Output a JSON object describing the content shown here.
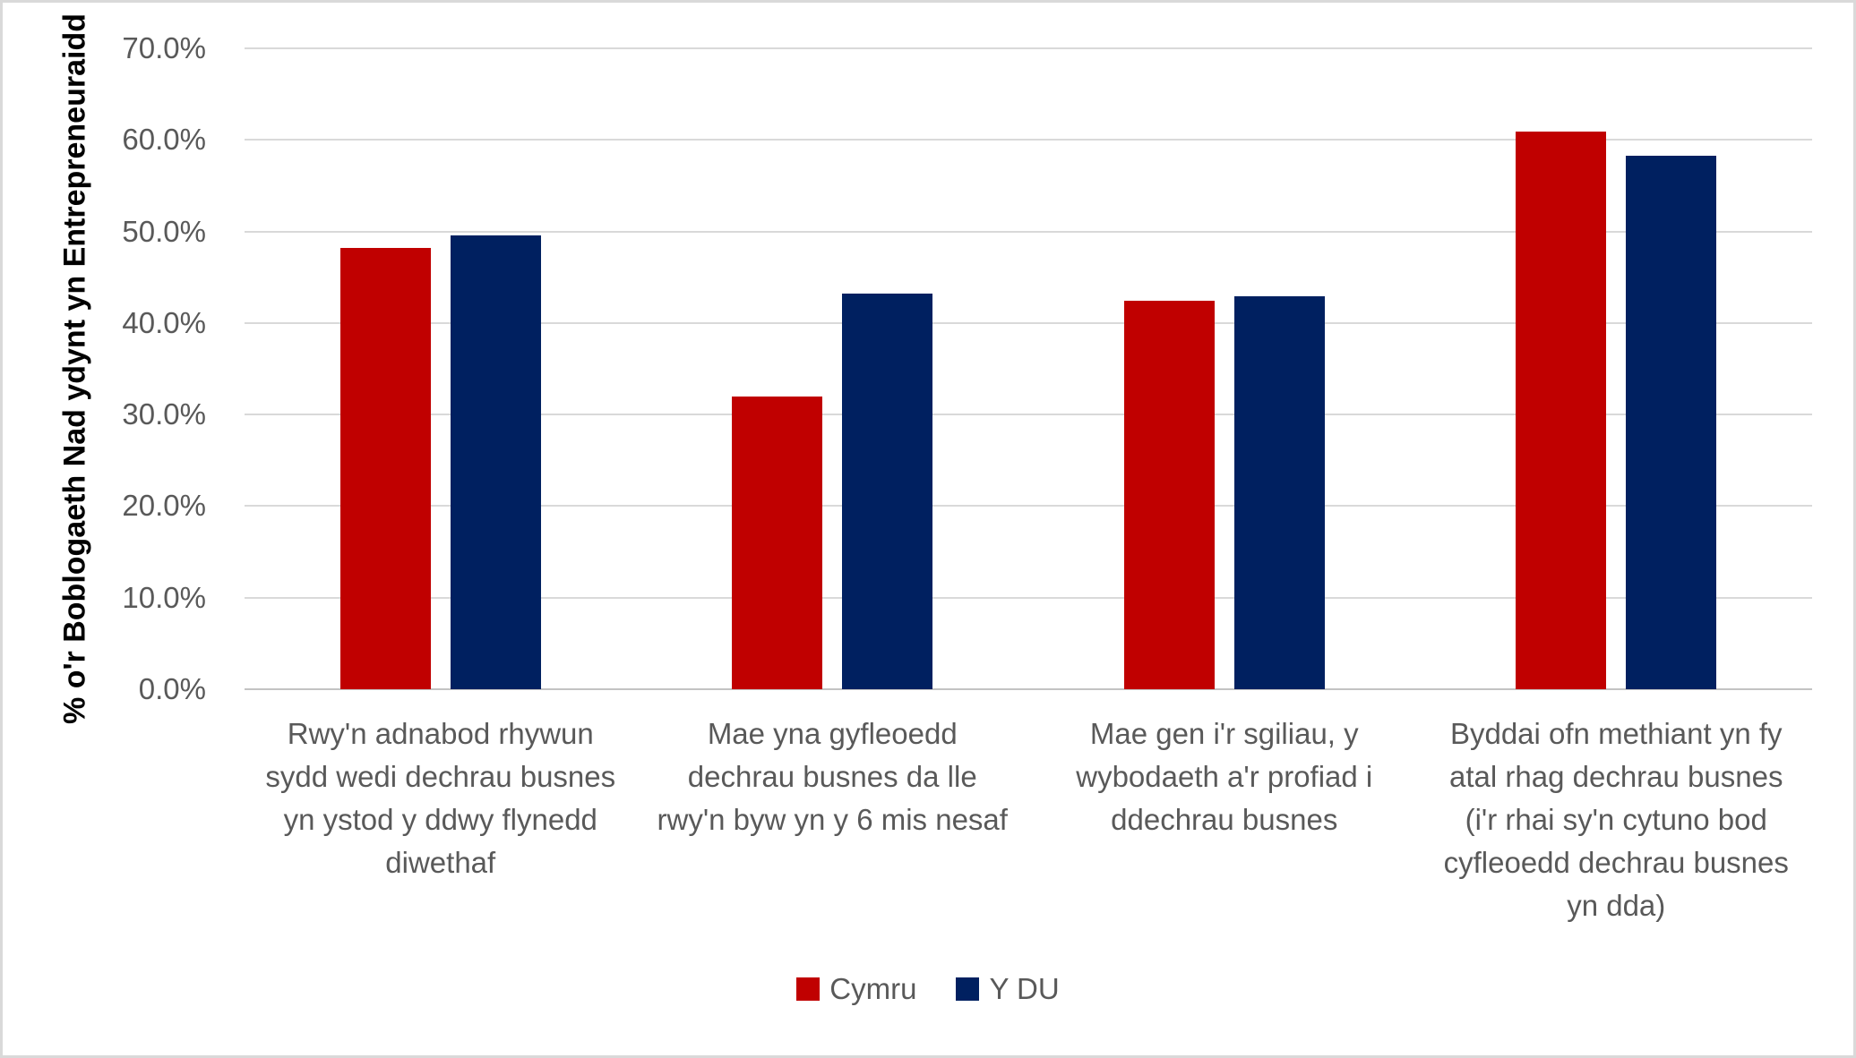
{
  "chart_data": {
    "type": "bar",
    "title": "",
    "xlabel": "",
    "ylabel": "% o'r Boblogaeth Nad ydynt yn Entrepreneuraidd",
    "categories": [
      "Rwy'n adnabod rhywun\nsydd wedi dechrau busnes\nyn ystod y ddwy flynedd\ndiwethaf",
      "Mae yna gyfleoedd\ndechrau busnes da lle\nrwy'n byw yn y 6 mis nesaf",
      "Mae gen i'r sgiliau, y\nwybodaeth a'r profiad i\nddechrau busnes",
      "Byddai ofn methiant yn fy\natal rhag dechrau busnes\n(i'r rhai sy'n cytuno bod\ncyfleoedd dechrau busnes\nyn dda)"
    ],
    "series": [
      {
        "name": "Cymru",
        "color": "#C00000",
        "values": [
          48.2,
          32.0,
          42.4,
          60.9
        ]
      },
      {
        "name": "Y DU",
        "color": "#002060",
        "values": [
          49.6,
          43.2,
          42.9,
          58.3
        ]
      }
    ],
    "ylim": [
      0,
      70
    ],
    "ytick_step": 10,
    "ytick_labels": [
      "0.0%",
      "10.0%",
      "20.0%",
      "30.0%",
      "40.0%",
      "50.0%",
      "60.0%",
      "70.0%"
    ],
    "values_unit": "percent",
    "grid": "horizontal",
    "legend_position": "bottom"
  }
}
